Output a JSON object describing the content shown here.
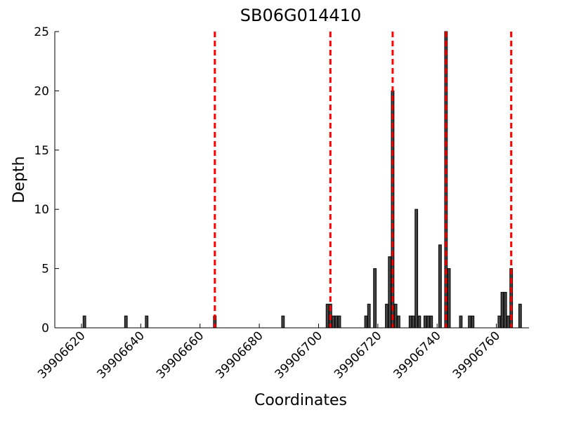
{
  "chart_data": {
    "type": "bar",
    "title": "SB06G014410",
    "x_label": "Coordinates",
    "y_label": "Depth",
    "x": [
      39906621,
      39906635,
      39906642,
      39906665,
      39906688,
      39906703,
      39906704,
      39906705,
      39906706,
      39906707,
      39906716,
      39906717,
      39906719,
      39906723,
      39906724,
      39906725,
      39906726,
      39906727,
      39906731,
      39906732,
      39906733,
      39906734,
      39906736,
      39906737,
      39906738,
      39906741,
      39906743,
      39906744,
      39906748,
      39906751,
      39906752,
      39906761,
      39906762,
      39906763,
      39906764,
      39906765,
      39906768
    ],
    "values": [
      1,
      1,
      1,
      1,
      1,
      2,
      2,
      1,
      1,
      1,
      1,
      2,
      5,
      2,
      6,
      20,
      2,
      1,
      1,
      1,
      10,
      1,
      1,
      1,
      1,
      7,
      25,
      5,
      1,
      1,
      1,
      1,
      3,
      3,
      1,
      5,
      2
    ],
    "color": "#444444",
    "edge_color": "#000000",
    "vlines": [
      39906665,
      39906704,
      39906725,
      39906743,
      39906765
    ],
    "vline_color": "#ff0000",
    "xlim": [
      39906611,
      39906771
    ],
    "ylim": [
      0,
      25
    ],
    "xticks": [
      39906620,
      39906640,
      39906660,
      39906680,
      39906700,
      39906720,
      39906740,
      39906760
    ],
    "yticks": [
      0,
      5,
      10,
      15,
      20,
      25
    ]
  }
}
